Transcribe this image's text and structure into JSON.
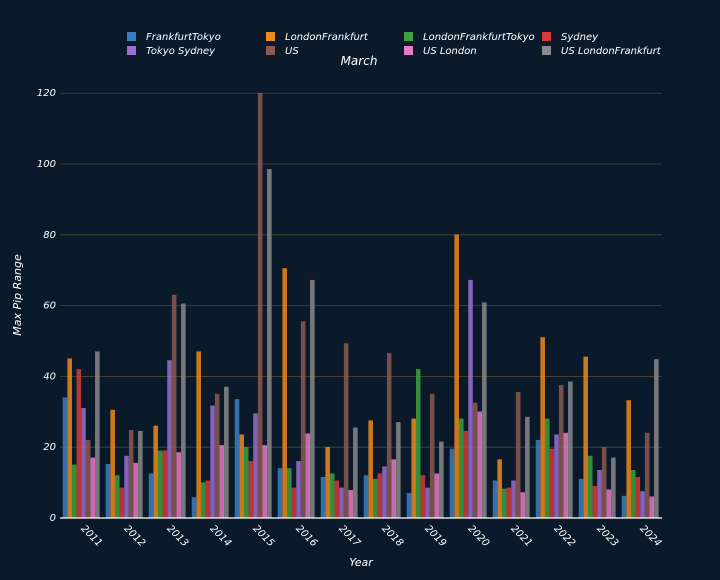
{
  "chart_data": {
    "type": "bar",
    "title": "March",
    "xlabel": "Year",
    "ylabel": "Max Pip Range",
    "ylim": [
      0,
      126
    ],
    "yticks": [
      0,
      20,
      40,
      60,
      80,
      100,
      120
    ],
    "grid": true,
    "legend_position": "top",
    "categories": [
      "2011",
      "2012",
      "2013",
      "2014",
      "2015",
      "2016",
      "2017",
      "2018",
      "2019",
      "2020",
      "2021",
      "2022",
      "2023",
      "2024"
    ],
    "series": [
      {
        "name": "FrankfurtTokyo",
        "color": "#3a7fc1",
        "values": [
          34,
          15.2,
          12.5,
          5.8,
          33.5,
          14,
          11.5,
          12,
          7,
          19.5,
          10.5,
          22,
          11,
          6.2
        ]
      },
      {
        "name": "LondonFrankfurt",
        "color": "#f08a1c",
        "values": [
          45,
          30.5,
          26,
          47,
          23.5,
          70.5,
          20,
          27.5,
          28,
          80,
          16.5,
          51,
          45.5,
          33.2
        ]
      },
      {
        "name": "LondonFrankfurtTokyo",
        "color": "#3da23d",
        "values": [
          15,
          12,
          19,
          10,
          20,
          14,
          12.5,
          11,
          42,
          28,
          8.2,
          28,
          17.5,
          13.5
        ]
      },
      {
        "name": "Sydney",
        "color": "#d63a3a",
        "values": [
          42,
          8.5,
          19,
          10.5,
          16,
          8.5,
          10.5,
          12.5,
          12,
          24.5,
          8.5,
          19.5,
          9,
          11.5
        ]
      },
      {
        "name": "Tokyo Sydney",
        "color": "#9b6fd1",
        "values": [
          31,
          17.5,
          44.5,
          31.7,
          29.5,
          16,
          8.5,
          14.5,
          8.5,
          67.2,
          10.5,
          23.5,
          13.5,
          7.5
        ]
      },
      {
        "name": "US",
        "color": "#8c5a50",
        "values": [
          22,
          24.8,
          63,
          35,
          120,
          55.5,
          49.3,
          46.5,
          35,
          32.5,
          35.5,
          37.5,
          20,
          24
        ]
      },
      {
        "name": "US London",
        "color": "#e67bc8",
        "values": [
          17,
          15.5,
          18.5,
          20.5,
          20.5,
          23.8,
          7.8,
          16.5,
          12.5,
          30,
          7.2,
          24,
          8,
          6
        ]
      },
      {
        "name": "US LondonFrankfurt",
        "color": "#8a8a8a",
        "values": [
          47,
          24.5,
          60.5,
          37,
          98.5,
          67.2,
          25.5,
          27,
          21.5,
          60.8,
          28.5,
          38.5,
          17,
          44.8
        ]
      }
    ]
  }
}
